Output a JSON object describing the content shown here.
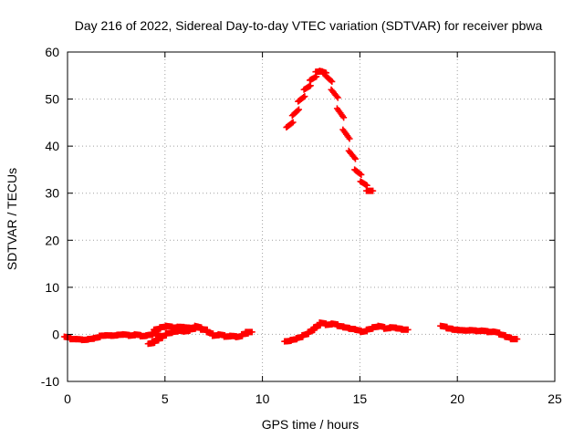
{
  "chart_data": {
    "type": "scatter",
    "title": "Day 216 of 2022, Sidereal Day-to-day VTEC variation (SDTVAR) for receiver pbwa",
    "xlabel": "GPS time / hours",
    "ylabel": "SDTVAR / TECUs",
    "xlim": [
      0,
      25
    ],
    "ylim": [
      -10,
      60
    ],
    "xticks": [
      0,
      5,
      10,
      15,
      20,
      25
    ],
    "yticks": [
      -10,
      0,
      10,
      20,
      30,
      40,
      50,
      60
    ],
    "xtick_labels": [
      "0",
      "5",
      "10",
      "15",
      "20",
      "25"
    ],
    "ytick_labels": [
      "-10",
      "0",
      "10",
      "20",
      "30",
      "40",
      "50",
      "60"
    ],
    "grid": true,
    "marker": "+",
    "series_color": "#ff0000",
    "series": [
      {
        "name": "segment-1",
        "x": [
          0.0,
          0.3,
          0.6,
          0.9,
          1.2,
          1.5,
          1.8,
          2.1,
          2.4,
          2.7,
          3.0,
          3.3,
          3.6,
          3.9,
          4.2,
          4.5
        ],
        "y": [
          -0.5,
          -1.0,
          -1.0,
          -1.2,
          -1.0,
          -0.8,
          -0.3,
          -0.2,
          -0.3,
          -0.1,
          0.0,
          -0.3,
          0.0,
          -0.4,
          -0.2,
          0.2
        ]
      },
      {
        "name": "segment-2",
        "x": [
          4.3,
          4.5,
          4.7,
          4.9,
          5.2,
          5.5,
          5.8,
          6.1,
          6.4,
          6.7,
          7.0,
          7.3,
          7.6,
          7.9,
          8.2,
          8.5,
          8.8,
          9.1,
          9.3
        ],
        "y": [
          -2.0,
          -1.5,
          -1.0,
          -0.5,
          0.2,
          0.5,
          0.8,
          0.6,
          1.0,
          1.5,
          1.2,
          0.5,
          -0.3,
          0.0,
          -0.5,
          -0.3,
          -0.6,
          0.0,
          0.5
        ]
      },
      {
        "name": "segment-2b",
        "x": [
          4.6,
          4.9,
          5.2,
          5.5,
          5.8,
          6.1,
          6.4,
          6.7,
          7.0
        ],
        "y": [
          1.0,
          1.5,
          1.8,
          1.4,
          1.6,
          1.5,
          1.3,
          1.8,
          1.0
        ]
      },
      {
        "name": "segment-3",
        "x": [
          11.3,
          11.6,
          11.9,
          12.2,
          12.5,
          12.8,
          13.1,
          13.4,
          13.7,
          14.0,
          14.3,
          14.6,
          14.9,
          15.2,
          15.5,
          15.8,
          16.1,
          16.4,
          16.7,
          17.0,
          17.3
        ],
        "y": [
          -1.5,
          -1.2,
          -0.8,
          -0.2,
          0.5,
          1.5,
          2.5,
          2.0,
          2.3,
          1.8,
          1.5,
          1.2,
          1.0,
          0.5,
          1.0,
          1.5,
          1.8,
          1.2,
          1.5,
          1.3,
          1.0
        ]
      },
      {
        "name": "segment-4",
        "x": [
          11.4,
          11.7,
          12.0,
          12.3,
          12.6,
          12.9,
          13.1,
          13.4,
          13.7,
          14.0,
          14.3,
          14.6,
          14.9,
          15.2,
          15.5
        ],
        "y": [
          44.0,
          46.5,
          49.5,
          52.0,
          54.0,
          55.8,
          56.0,
          55.0,
          52.0,
          48.0,
          43.5,
          39.0,
          35.0,
          32.5,
          30.5
        ]
      },
      {
        "name": "segment-5",
        "x": [
          19.3,
          19.6,
          19.9,
          20.2,
          20.5,
          20.8,
          21.1,
          21.4,
          21.7,
          22.0,
          22.3,
          22.6,
          22.9
        ],
        "y": [
          1.8,
          1.3,
          1.0,
          0.9,
          0.8,
          0.9,
          0.7,
          0.8,
          0.5,
          0.6,
          0.0,
          -0.5,
          -1.0
        ]
      }
    ]
  }
}
